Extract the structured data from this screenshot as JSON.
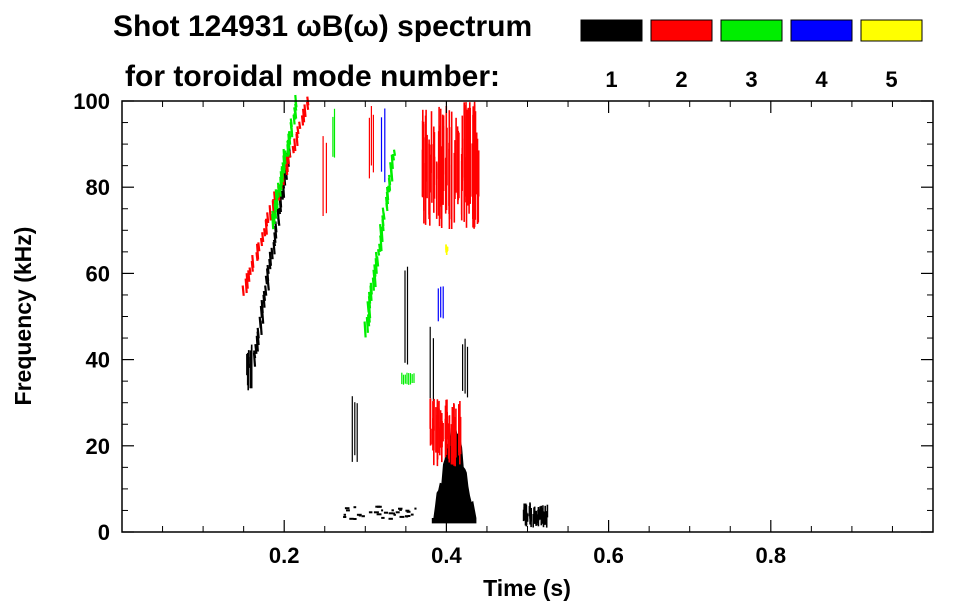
{
  "chart_data": {
    "type": "heatmap",
    "title_line1": "Shot 124931 ωB(ω) spectrum",
    "title_line2": "for toroidal mode number:",
    "xlabel": "Time (s)",
    "ylabel": "Frequency (kHz)",
    "xlim": [
      0.0,
      1.0
    ],
    "ylim": [
      0,
      100
    ],
    "x_ticks": [
      0.2,
      0.4,
      0.6,
      0.8
    ],
    "x_tick_labels": [
      "0.2",
      "0.4",
      "0.6",
      "0.8"
    ],
    "y_ticks": [
      0,
      20,
      40,
      60,
      80,
      100
    ],
    "y_tick_labels": [
      "0",
      "20",
      "40",
      "60",
      "80",
      "100"
    ],
    "legend": {
      "position": "top-right",
      "entries": [
        {
          "label": "1",
          "color": "#000000"
        },
        {
          "label": "2",
          "color": "#ff0000"
        },
        {
          "label": "3",
          "color": "#00ee00"
        },
        {
          "label": "4",
          "color": "#0000ff"
        },
        {
          "label": "5",
          "color": "#ffff00"
        }
      ]
    },
    "features": [
      {
        "mode": 1,
        "kind": "blob",
        "t": [
          0.382,
          0.437
        ],
        "f": [
          2,
          27
        ],
        "peak_t": 0.41
      },
      {
        "mode": 1,
        "kind": "chirp",
        "t": [
          0.163,
          0.205
        ],
        "f": [
          40,
          88
        ]
      },
      {
        "mode": 1,
        "kind": "blob",
        "t": [
          0.153,
          0.161
        ],
        "f": [
          32,
          45
        ]
      },
      {
        "mode": 1,
        "kind": "blob",
        "t": [
          0.495,
          0.525
        ],
        "f": [
          1,
          7
        ]
      },
      {
        "mode": 1,
        "kind": "band",
        "t": [
          0.27,
          0.37
        ],
        "f": [
          3,
          6
        ]
      },
      {
        "mode": 1,
        "kind": "streak",
        "t": [
          0.284,
          0.29
        ],
        "f": [
          16,
          32
        ]
      },
      {
        "mode": 1,
        "kind": "streak",
        "t": [
          0.349,
          0.352
        ],
        "f": [
          38,
          62
        ]
      },
      {
        "mode": 1,
        "kind": "streak",
        "t": [
          0.38,
          0.384
        ],
        "f": [
          30,
          48
        ]
      },
      {
        "mode": 1,
        "kind": "streak",
        "t": [
          0.42,
          0.426
        ],
        "f": [
          30,
          45
        ]
      },
      {
        "mode": 2,
        "kind": "blob",
        "t": [
          0.37,
          0.44
        ],
        "f": [
          70,
          100
        ]
      },
      {
        "mode": 2,
        "kind": "blob",
        "t": [
          0.38,
          0.42
        ],
        "f": [
          15,
          31
        ]
      },
      {
        "mode": 2,
        "kind": "chirp",
        "t": [
          0.15,
          0.23
        ],
        "f": [
          56,
          100
        ]
      },
      {
        "mode": 2,
        "kind": "streak",
        "t": [
          0.248,
          0.252
        ],
        "f": [
          73,
          94
        ]
      },
      {
        "mode": 2,
        "kind": "streak",
        "t": [
          0.305,
          0.31
        ],
        "f": [
          82,
          99
        ]
      },
      {
        "mode": 3,
        "kind": "chirp",
        "t": [
          0.3,
          0.335
        ],
        "f": [
          47,
          88
        ]
      },
      {
        "mode": 3,
        "kind": "chirp",
        "t": [
          0.185,
          0.215
        ],
        "f": [
          72,
          100
        ]
      },
      {
        "mode": 3,
        "kind": "streak",
        "t": [
          0.26,
          0.262
        ],
        "f": [
          85,
          99
        ]
      },
      {
        "mode": 3,
        "kind": "streak",
        "t": [
          0.345,
          0.36
        ],
        "f": [
          34,
          37
        ]
      },
      {
        "mode": 4,
        "kind": "streak",
        "t": [
          0.32,
          0.324
        ],
        "f": [
          80,
          100
        ]
      },
      {
        "mode": 4,
        "kind": "streak",
        "t": [
          0.39,
          0.396
        ],
        "f": [
          48,
          58
        ]
      },
      {
        "mode": 5,
        "kind": "blob",
        "t": [
          0.398,
          0.402
        ],
        "f": [
          64,
          67
        ]
      }
    ]
  }
}
